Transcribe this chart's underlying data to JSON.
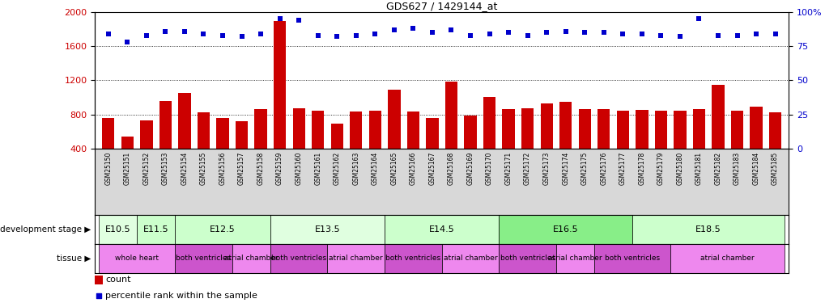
{
  "title": "GDS627 / 1429144_at",
  "samples": [
    "GSM25150",
    "GSM25151",
    "GSM25152",
    "GSM25153",
    "GSM25154",
    "GSM25155",
    "GSM25156",
    "GSM25157",
    "GSM25158",
    "GSM25159",
    "GSM25160",
    "GSM25161",
    "GSM25162",
    "GSM25163",
    "GSM25164",
    "GSM25165",
    "GSM25166",
    "GSM25167",
    "GSM25168",
    "GSM25169",
    "GSM25170",
    "GSM25171",
    "GSM25172",
    "GSM25173",
    "GSM25174",
    "GSM25175",
    "GSM25176",
    "GSM25177",
    "GSM25178",
    "GSM25179",
    "GSM25180",
    "GSM25181",
    "GSM25182",
    "GSM25183",
    "GSM25184",
    "GSM25185"
  ],
  "counts": [
    760,
    540,
    730,
    960,
    1050,
    820,
    760,
    720,
    860,
    1900,
    870,
    840,
    690,
    830,
    840,
    1090,
    830,
    760,
    1180,
    790,
    1000,
    860,
    870,
    930,
    950,
    860,
    860,
    840,
    850,
    840,
    840,
    860,
    1150,
    840,
    890,
    820
  ],
  "percentiles": [
    84,
    78,
    83,
    86,
    86,
    84,
    83,
    82,
    84,
    95,
    94,
    83,
    82,
    83,
    84,
    87,
    88,
    85,
    87,
    83,
    84,
    85,
    83,
    85,
    86,
    85,
    85,
    84,
    84,
    83,
    82,
    95,
    83,
    83,
    84,
    84
  ],
  "ylim_left": [
    400,
    2000
  ],
  "ylim_right": [
    0,
    100
  ],
  "yticks_left": [
    400,
    800,
    1200,
    1600,
    2000
  ],
  "yticks_right": [
    0,
    25,
    50,
    75,
    100
  ],
  "bar_color": "#cc0000",
  "dot_color": "#0000cc",
  "background_color": "#ffffff",
  "tick_area_color": "#d8d8d8",
  "dev_stages": [
    {
      "label": "E10.5",
      "start": 0,
      "end": 2,
      "color": "#e0ffe0"
    },
    {
      "label": "E11.5",
      "start": 2,
      "end": 4,
      "color": "#ccffcc"
    },
    {
      "label": "E12.5",
      "start": 4,
      "end": 9,
      "color": "#ccffcc"
    },
    {
      "label": "E13.5",
      "start": 9,
      "end": 15,
      "color": "#e0ffe0"
    },
    {
      "label": "E14.5",
      "start": 15,
      "end": 21,
      "color": "#ccffcc"
    },
    {
      "label": "E16.5",
      "start": 21,
      "end": 28,
      "color": "#88ee88"
    },
    {
      "label": "E18.5",
      "start": 28,
      "end": 36,
      "color": "#ccffcc"
    }
  ],
  "tissues": [
    {
      "label": "whole heart",
      "start": 0,
      "end": 4,
      "color": "#ee88ee"
    },
    {
      "label": "both ventricles",
      "start": 4,
      "end": 7,
      "color": "#cc55cc"
    },
    {
      "label": "atrial chamber",
      "start": 7,
      "end": 9,
      "color": "#ee88ee"
    },
    {
      "label": "both ventricles",
      "start": 9,
      "end": 12,
      "color": "#cc55cc"
    },
    {
      "label": "atrial chamber",
      "start": 12,
      "end": 15,
      "color": "#ee88ee"
    },
    {
      "label": "both ventricles",
      "start": 15,
      "end": 18,
      "color": "#cc55cc"
    },
    {
      "label": "atrial chamber",
      "start": 18,
      "end": 21,
      "color": "#ee88ee"
    },
    {
      "label": "both ventricles",
      "start": 21,
      "end": 24,
      "color": "#cc55cc"
    },
    {
      "label": "atrial chamber",
      "start": 24,
      "end": 26,
      "color": "#ee88ee"
    },
    {
      "label": "both ventricles",
      "start": 26,
      "end": 30,
      "color": "#cc55cc"
    },
    {
      "label": "atrial chamber",
      "start": 30,
      "end": 36,
      "color": "#ee88ee"
    }
  ],
  "legend_count_color": "#cc0000",
  "legend_dot_color": "#0000cc"
}
